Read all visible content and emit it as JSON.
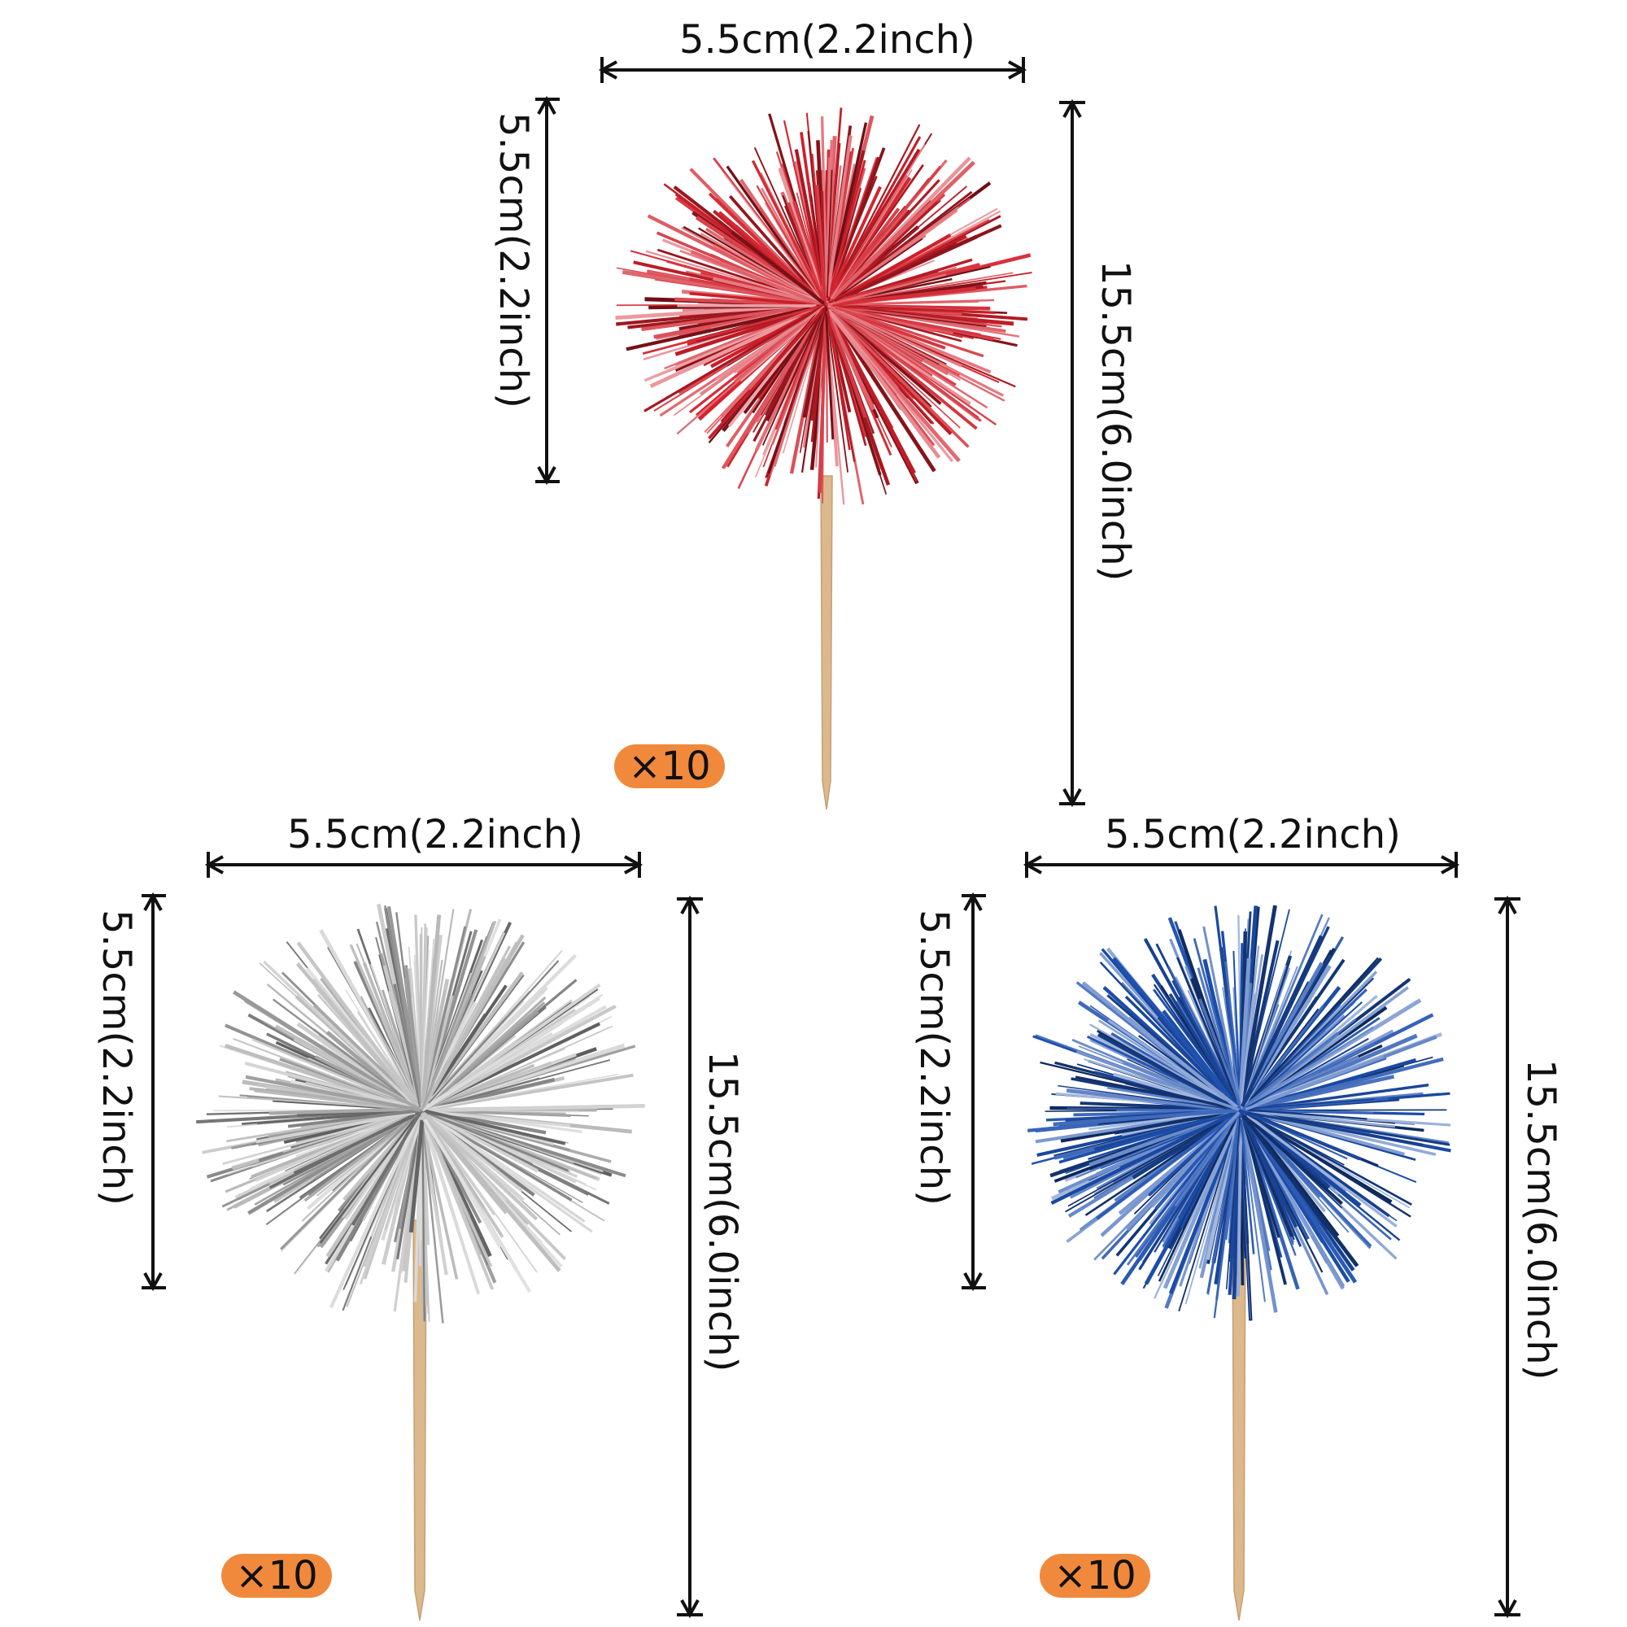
{
  "colors": {
    "red_pompom": "#d21f2a",
    "silver_pompom": "#b8b8b8",
    "blue_pompom": "#1d4fae",
    "stick": "#dcb98d",
    "badge": "#f0893c",
    "dimension_line": "#111111"
  },
  "products": [
    {
      "id": "red",
      "width_label": "5.5cm(2.2inch)",
      "height_label": "5.5cm(2.2inch)",
      "total_length_label": "15.5cm(6.0inch)",
      "quantity_label": "×10"
    },
    {
      "id": "silver",
      "width_label": "5.5cm(2.2inch)",
      "height_label": "5.5cm(2.2inch)",
      "total_length_label": "15.5cm(6.0inch)",
      "quantity_label": "×10"
    },
    {
      "id": "blue",
      "width_label": "5.5cm(2.2inch)",
      "height_label": "5.5cm(2.2inch)",
      "total_length_label": "15.5cm(6.0inch)",
      "quantity_label": "×10"
    }
  ]
}
